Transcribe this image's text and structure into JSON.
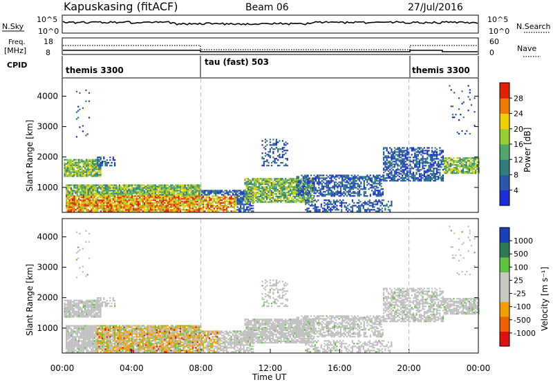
{
  "header": {
    "station": "Kapuskasing (fitACF)",
    "beam": "Beam 06",
    "date": "27/Jul/2016"
  },
  "panels": {
    "nsky_label": "N.Sky",
    "nsky_ticks": [
      "10^5",
      "10^0"
    ],
    "nsearch_label": "N.Search",
    "freq_label_line1": "Freq.",
    "freq_label_line2": "[MHz]",
    "freq_ticks": [
      "18",
      "8"
    ],
    "nave_ticks": [
      "60",
      "0"
    ],
    "nave_label": "Nave",
    "cpid_label": "CPID",
    "cpid_segments": [
      {
        "label": "themis 3300",
        "start_hour": 0,
        "end_hour": 8
      },
      {
        "label": "tau (fast) 503",
        "start_hour": 8,
        "end_hour": 20
      },
      {
        "label": "themis 3300",
        "start_hour": 20,
        "end_hour": 24
      }
    ]
  },
  "colors": {
    "power": [
      "#1a2fd9",
      "#2a56b0",
      "#2f7f78",
      "#4ea86a",
      "#9acd32",
      "#f0d000",
      "#f07a00",
      "#e02000"
    ],
    "velocity": [
      "#1a3fb8",
      "#2f7a52",
      "#5fc240",
      "#c8c8c0",
      "#c8c8c0",
      "#f0a000",
      "#f06000",
      "#e01010"
    ],
    "ground": "#c0c0c0"
  },
  "chart_data": [
    {
      "type": "heatmap",
      "name": "power",
      "xlabel": "",
      "ylabel": "Slant Range [km]",
      "xlim_hours": [
        0,
        24
      ],
      "ylim": [
        180,
        4600
      ],
      "yticks": [
        "4000",
        "3000",
        "2000",
        "1000"
      ],
      "ytick_values": [
        4000,
        3000,
        2000,
        1000
      ],
      "colorbar_label": "Power [dB]",
      "colorbar_ticks": [
        "28",
        "24",
        "20",
        "16",
        "12",
        "8",
        "4"
      ],
      "colorbar_range": [
        0,
        32
      ]
    },
    {
      "type": "heatmap",
      "name": "velocity",
      "xlabel": "Time UT",
      "ylabel": "Slant Range [km]",
      "xlim_hours": [
        0,
        24
      ],
      "ylim": [
        180,
        4600
      ],
      "yticks": [
        "4000",
        "3000",
        "2000",
        "1000"
      ],
      "ytick_values": [
        4000,
        3000,
        2000,
        1000
      ],
      "xticks": [
        "00:00",
        "04:00",
        "08:00",
        "12:00",
        "16:00",
        "20:00",
        "00:00"
      ],
      "xtick_hours": [
        0,
        4,
        8,
        12,
        16,
        20,
        24
      ],
      "colorbar_label": "Velocity [m s⁻¹]",
      "colorbar_ticks": [
        "1000",
        "500",
        "100",
        "25",
        "-25",
        "-100",
        "-500",
        "-1000"
      ]
    }
  ]
}
